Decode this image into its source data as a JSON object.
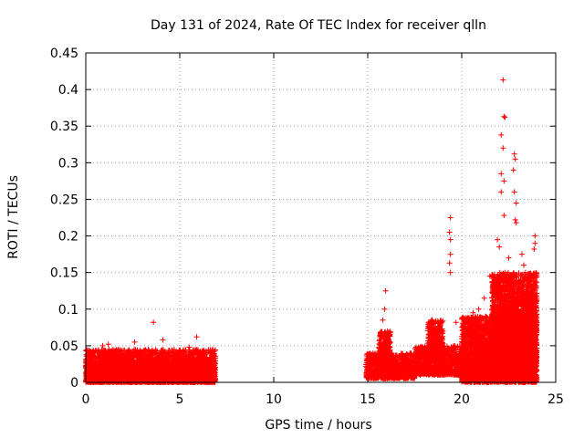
{
  "chart_data": {
    "type": "scatter",
    "title": "Day 131 of 2024, Rate Of TEC Index for receiver qlln",
    "xlabel": "GPS time / hours",
    "ylabel": "ROTI / TECUs",
    "xlim": [
      0,
      25
    ],
    "ylim": [
      0,
      0.45
    ],
    "xticks": [
      0,
      5,
      10,
      15,
      20,
      25
    ],
    "xtick_labels": [
      "0",
      "5",
      "10",
      "15",
      "20",
      "25"
    ],
    "yticks": [
      0,
      0.05,
      0.1,
      0.15,
      0.2,
      0.25,
      0.3,
      0.35,
      0.4,
      0.45
    ],
    "ytick_labels": [
      "0",
      "0.05",
      "0.1",
      "0.15",
      "0.2",
      "0.25",
      "0.3",
      "0.35",
      "0.4",
      "0.45"
    ],
    "grid": true,
    "marker": "+",
    "series_color": "#ff0000",
    "series": [
      {
        "name": "ROTI",
        "dense_bands": [
          {
            "x_range": [
              0.0,
              6.9
            ],
            "y_range": [
              0.0,
              0.03
            ]
          },
          {
            "x_range": [
              0.0,
              6.9
            ],
            "y_range": [
              0.0,
              0.045
            ]
          },
          {
            "x_range": [
              14.9,
              17.5
            ],
            "y_range": [
              0.005,
              0.04
            ]
          },
          {
            "x_range": [
              15.6,
              16.2
            ],
            "y_range": [
              0.02,
              0.07
            ]
          },
          {
            "x_range": [
              17.5,
              20.0
            ],
            "y_range": [
              0.01,
              0.05
            ]
          },
          {
            "x_range": [
              18.2,
              19.0
            ],
            "y_range": [
              0.03,
              0.085
            ]
          },
          {
            "x_range": [
              20.0,
              24.0
            ],
            "y_range": [
              0.0,
              0.09
            ]
          },
          {
            "x_range": [
              21.6,
              24.0
            ],
            "y_range": [
              0.02,
              0.15
            ]
          }
        ],
        "points": [
          [
            3.6,
            0.082
          ],
          [
            4.1,
            0.058
          ],
          [
            5.9,
            0.062
          ],
          [
            5.5,
            0.048
          ],
          [
            2.6,
            0.055
          ],
          [
            1.2,
            0.052
          ],
          [
            0.9,
            0.05
          ],
          [
            15.95,
            0.125
          ],
          [
            15.9,
            0.1
          ],
          [
            15.8,
            0.085
          ],
          [
            19.4,
            0.225
          ],
          [
            19.35,
            0.205
          ],
          [
            19.4,
            0.195
          ],
          [
            19.4,
            0.175
          ],
          [
            19.35,
            0.163
          ],
          [
            19.4,
            0.15
          ],
          [
            22.2,
            0.413
          ],
          [
            22.25,
            0.363
          ],
          [
            22.3,
            0.362
          ],
          [
            22.1,
            0.338
          ],
          [
            22.2,
            0.32
          ],
          [
            22.1,
            0.285
          ],
          [
            22.25,
            0.275
          ],
          [
            22.1,
            0.26
          ],
          [
            22.25,
            0.228
          ],
          [
            22.8,
            0.312
          ],
          [
            22.85,
            0.305
          ],
          [
            22.75,
            0.29
          ],
          [
            22.8,
            0.26
          ],
          [
            22.9,
            0.245
          ],
          [
            22.85,
            0.222
          ],
          [
            22.9,
            0.218
          ],
          [
            23.9,
            0.2
          ],
          [
            23.9,
            0.19
          ],
          [
            23.85,
            0.182
          ],
          [
            21.9,
            0.195
          ],
          [
            22.0,
            0.185
          ],
          [
            23.2,
            0.175
          ],
          [
            23.3,
            0.16
          ],
          [
            22.5,
            0.17
          ],
          [
            21.5,
            0.145
          ],
          [
            21.8,
            0.135
          ],
          [
            23.6,
            0.138
          ],
          [
            23.8,
            0.12
          ],
          [
            23.95,
            0.105
          ],
          [
            21.2,
            0.115
          ],
          [
            20.6,
            0.095
          ],
          [
            20.9,
            0.1
          ],
          [
            19.7,
            0.082
          ],
          [
            18.4,
            0.085
          ]
        ]
      }
    ]
  }
}
